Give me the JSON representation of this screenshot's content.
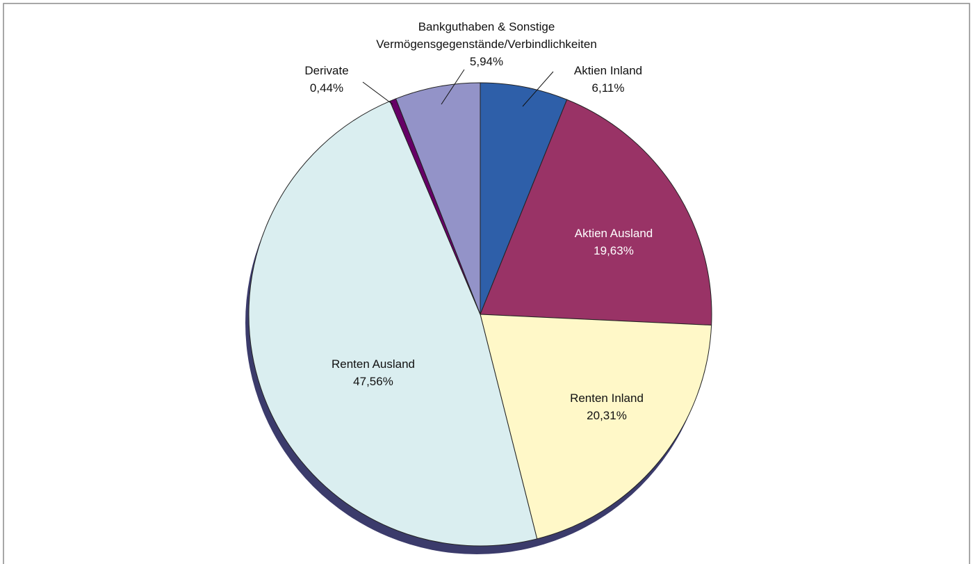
{
  "chart_data": {
    "type": "pie",
    "categories": [
      "Aktien Inland",
      "Aktien Ausland",
      "Renten Inland",
      "Renten Ausland",
      "Derivate",
      "Bankguthaben & Sonstige\nVermögensgegenstände/Verbindlichkeiten"
    ],
    "values": [
      6.11,
      19.63,
      20.31,
      47.56,
      0.44,
      5.94
    ],
    "value_labels": [
      "6,11%",
      "19,63%",
      "20,31%",
      "47,56%",
      "0,44%",
      "5,94%"
    ],
    "colors": [
      "#2e5fa9",
      "#993366",
      "#fff8c8",
      "#daeef0",
      "#660066",
      "#9393c8"
    ]
  }
}
